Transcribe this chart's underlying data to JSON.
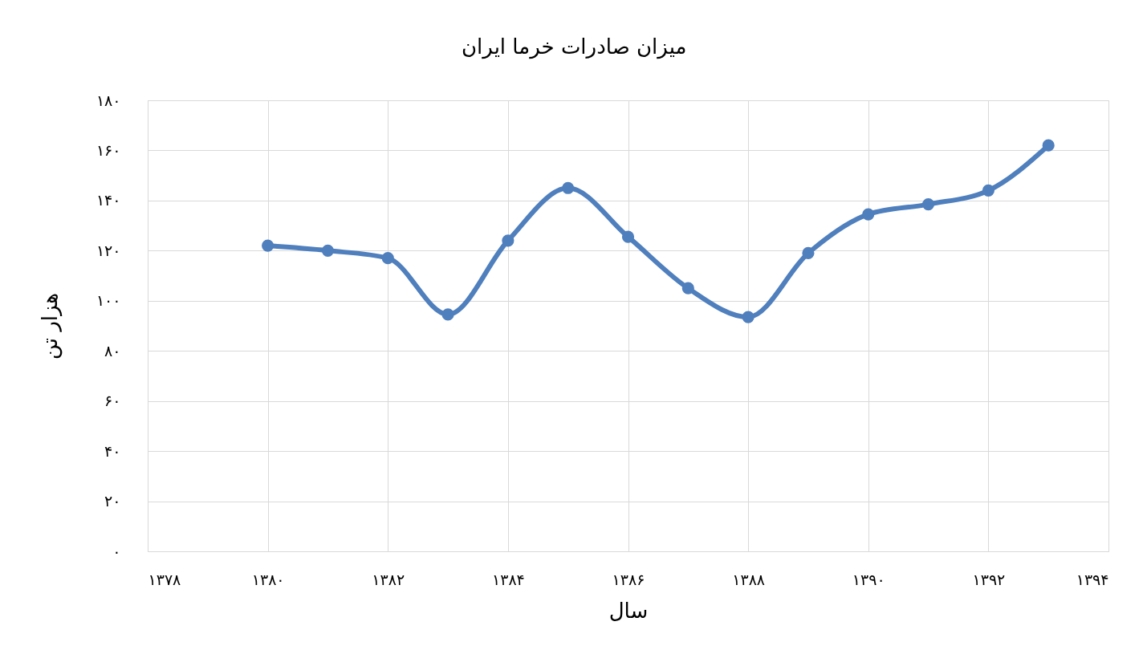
{
  "chart_data": {
    "type": "line",
    "title": "میزان صادرات خرما ایران",
    "xlabel": "سال",
    "ylabel": "هزار تن",
    "x": [
      1380,
      1381,
      1382,
      1383,
      1384,
      1385,
      1386,
      1387,
      1388,
      1389,
      1390,
      1391,
      1392,
      1393
    ],
    "series": [
      {
        "color": "#4f7fbd",
        "values": [
          122,
          120,
          117,
          94.5,
          124,
          145,
          125.5,
          105,
          93.5,
          119,
          134.5,
          138.5,
          144,
          162
        ]
      }
    ],
    "xlim": [
      1378,
      1394
    ],
    "xticks": [
      {
        "value": 1378,
        "label": "۱۳۷۸"
      },
      {
        "value": 1380,
        "label": "۱۳۸۰"
      },
      {
        "value": 1382,
        "label": "۱۳۸۲"
      },
      {
        "value": 1384,
        "label": "۱۳۸۴"
      },
      {
        "value": 1386,
        "label": "۱۳۸۶"
      },
      {
        "value": 1388,
        "label": "۱۳۸۸"
      },
      {
        "value": 1390,
        "label": "۱۳۹۰"
      },
      {
        "value": 1392,
        "label": "۱۳۹۲"
      },
      {
        "value": 1394,
        "label": "۱۳۹۴"
      }
    ],
    "ylim": [
      0,
      180
    ],
    "yticks": [
      {
        "value": 0,
        "label": "۰"
      },
      {
        "value": 20,
        "label": "۲۰"
      },
      {
        "value": 40,
        "label": "۴۰"
      },
      {
        "value": 60,
        "label": "۶۰"
      },
      {
        "value": 80,
        "label": "۸۰"
      },
      {
        "value": 100,
        "label": "۱۰۰"
      },
      {
        "value": 120,
        "label": "۱۲۰"
      },
      {
        "value": 140,
        "label": "۱۴۰"
      },
      {
        "value": 160,
        "label": "۱۶۰"
      },
      {
        "value": 180,
        "label": "۱۸۰"
      }
    ],
    "grid": true,
    "marker": "circle",
    "line_style": "solid"
  }
}
